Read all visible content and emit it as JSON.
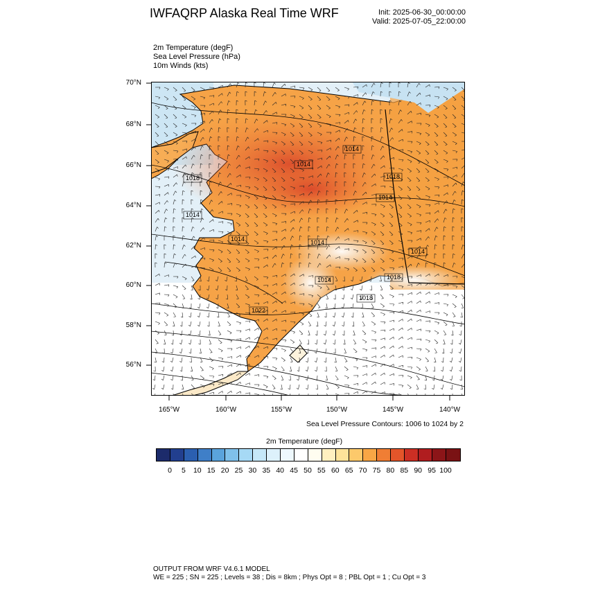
{
  "header": {
    "title": "IWFAQRP Alaska Real Time WRF",
    "init": "Init: 2025-06-30_00:00:00",
    "valid": "Valid: 2025-07-05_22:00:00"
  },
  "fields": [
    "2m Temperature   (degF)",
    "Sea Level Pressure   (hPa)",
    "10m Winds   (kts)"
  ],
  "map": {
    "lat_labels": [
      "70°N",
      "68°N",
      "66°N",
      "64°N",
      "62°N",
      "60°N",
      "58°N",
      "56°N"
    ],
    "lon_labels": [
      "165°W",
      "160°W",
      "155°W",
      "150°W",
      "145°W",
      "140°W"
    ],
    "isobar_labels": [
      "1014",
      "1014",
      "1018",
      "1018",
      "1014",
      "1014",
      "1014",
      "1014",
      "1014",
      "1018",
      "1018",
      "1022",
      "1014"
    ],
    "contour_note": "Sea Level Pressure Contours: 1006 to 1024 by 2"
  },
  "colorbar": {
    "title": "2m Temperature  (degF)",
    "labels": [
      "0",
      "5",
      "10",
      "15",
      "20",
      "25",
      "30",
      "35",
      "40",
      "45",
      "50",
      "55",
      "60",
      "65",
      "70",
      "75",
      "80",
      "85",
      "90",
      "95",
      "100"
    ],
    "colors": [
      "#1c2b6b",
      "#223f8f",
      "#2b5fb0",
      "#3f7fc8",
      "#5aa3dc",
      "#7fc0ea",
      "#a6d9f5",
      "#c6e8f8",
      "#ddf1fb",
      "#eef8fd",
      "#ffffff",
      "#fffdf0",
      "#fff0c0",
      "#fde39a",
      "#fcc96b",
      "#f8a645",
      "#f07e34",
      "#e4552a",
      "#cc2f24",
      "#b01d1f",
      "#8c1518"
    ]
  },
  "footer": {
    "line1": "OUTPUT FROM WRF V4.6.1 MODEL",
    "line2": "WE = 225 ; SN = 225 ; Levels = 38 ; Dis = 8km ; Phys Opt = 8 ; PBL Opt = 1 ; Cu Opt = 3"
  }
}
